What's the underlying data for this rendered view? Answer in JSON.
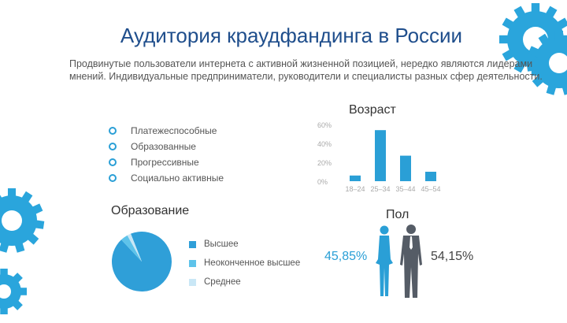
{
  "title": "Аудитория краудфандинга в России",
  "subtitle": "Продвинутые пользователи интернета с активной жизненной позицией, нередко являются лидерами мнений. Индивидуальные предприниматели, руководители и специалисты разных сфер деятельности.",
  "traits": [
    "Платежеспособные",
    "Образованные",
    "Прогрессивные",
    "Социально активные"
  ],
  "age": {
    "heading": "Возраст"
  },
  "education": {
    "heading": "Образование",
    "legend": [
      {
        "label": "Высшее",
        "color": "#2f9fd8"
      },
      {
        "label": "Неоконченное высшее",
        "color": "#5ec3ea"
      },
      {
        "label": "Среднее",
        "color": "#c9e7f6"
      }
    ]
  },
  "gender": {
    "heading": "Пол",
    "female_label": "45,85%",
    "male_label": "54,15%"
  },
  "colors": {
    "accent": "#2a9fd6",
    "title": "#1f4e8c",
    "gear": "#2aa5dc",
    "male": "#555c66"
  },
  "chart_data": [
    {
      "type": "bar",
      "title": "Возраст",
      "categories": [
        "18–24",
        "25–34",
        "35–44",
        "45–54"
      ],
      "values": [
        6,
        54,
        27,
        10
      ],
      "yticks": [
        "0%",
        "20%",
        "40%",
        "60%"
      ],
      "ylim": [
        0,
        60
      ],
      "grid": false,
      "color": "#2a9fd6"
    },
    {
      "type": "pie",
      "title": "Образование",
      "labels": [
        "Высшее",
        "Неоконченное высшее",
        "Среднее"
      ],
      "values": [
        94,
        4,
        2
      ],
      "colors": [
        "#2f9fd8",
        "#5ec3ea",
        "#c9e7f6"
      ]
    }
  ]
}
